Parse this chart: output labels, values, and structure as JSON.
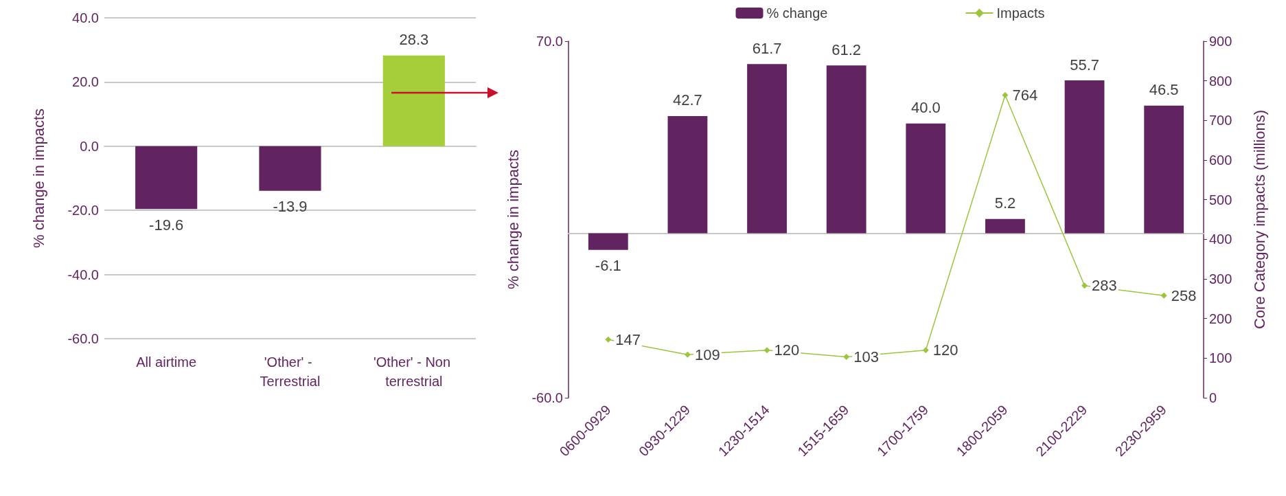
{
  "chart_data": [
    {
      "type": "bar",
      "ylabel": "% change in impacts",
      "categories": [
        "All airtime",
        "'Other' - Terrestrial",
        "'Other' - Non terrestrial"
      ],
      "values": [
        -19.6,
        -13.9,
        28.3
      ],
      "value_labels": [
        "-19.6",
        "-13.9",
        "28.3"
      ],
      "colors": [
        "#622461",
        "#622461",
        "#a6ce39"
      ],
      "ylim": [
        -60,
        40
      ],
      "yticks": [
        {
          "value": -60,
          "label": "-60.0"
        },
        {
          "value": -40,
          "label": "-40.0"
        },
        {
          "value": -20,
          "label": "-20.0"
        },
        {
          "value": 0,
          "label": "0.0"
        },
        {
          "value": 20,
          "label": "20.0"
        },
        {
          "value": 40,
          "label": "40.0"
        }
      ],
      "grid": "y",
      "legend": false
    },
    {
      "type": "bar",
      "ylabel": "% change in impacts",
      "y2label": "Core Category impacts (millions)",
      "categories": [
        "0600-0929",
        "0930-1229",
        "1230-1514",
        "1515-1659",
        "1700-1759",
        "1800-2059",
        "2100-2229",
        "2230-2959"
      ],
      "series": [
        {
          "name": "% change",
          "type": "bar",
          "color": "#622461",
          "values": [
            -6.1,
            42.7,
            61.7,
            61.2,
            40.0,
            5.2,
            55.7,
            46.5
          ],
          "value_labels": [
            "-6.1",
            "42.7",
            "61.7",
            "61.2",
            "40.0",
            "5.2",
            "55.7",
            "46.5"
          ]
        },
        {
          "name": "Impacts",
          "type": "line",
          "axis": "y2",
          "color": "#9bc53d",
          "values": [
            147,
            109,
            120,
            103,
            120,
            764,
            283,
            258
          ],
          "value_labels": [
            "147",
            "109",
            "120",
            "103",
            "120",
            "764",
            "283",
            "258"
          ]
        }
      ],
      "ylim": [
        -60,
        70
      ],
      "yticks": [
        {
          "value": -60,
          "label": "-60.0"
        },
        {
          "value": 70,
          "label": "70.0"
        }
      ],
      "y2lim": [
        0,
        900
      ],
      "y2ticks": [
        0,
        100,
        200,
        300,
        400,
        500,
        600,
        700,
        800,
        900
      ],
      "marker": "diamond",
      "line_style": "solid",
      "grid": false,
      "legend": "top"
    }
  ]
}
